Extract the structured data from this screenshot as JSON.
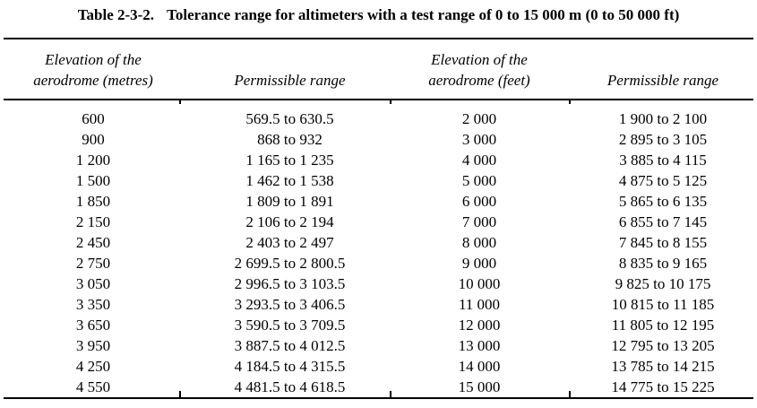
{
  "colors": {
    "text": "#000000",
    "background": "#ffffff",
    "rule": "#000000"
  },
  "title": {
    "label": "Table 2-3-2.",
    "caption": "Tolerance range for altimeters with a test range of 0 to 15 000 m (0 to 50 000 ft)"
  },
  "headers": {
    "elevation_metres_line1": "Elevation of the",
    "elevation_metres_line2": "aerodrome (metres)",
    "permissible_range_metres": "Permissible range",
    "elevation_feet_line1": "Elevation of the",
    "elevation_feet_line2": "aerodrome (feet)",
    "permissible_range_feet": "Permissible range"
  },
  "table": {
    "rows": [
      {
        "elevation_m": "600",
        "range_m": "569.5 to 630.5",
        "elevation_ft": "2 000",
        "range_ft": "1 900 to 2 100"
      },
      {
        "elevation_m": "900",
        "range_m": "868 to 932",
        "elevation_ft": "3 000",
        "range_ft": "2 895 to 3 105"
      },
      {
        "elevation_m": "1 200",
        "range_m": "1 165 to 1 235",
        "elevation_ft": "4 000",
        "range_ft": "3 885 to 4 115"
      },
      {
        "elevation_m": "1 500",
        "range_m": "1 462 to 1 538",
        "elevation_ft": "5 000",
        "range_ft": "4 875 to 5 125"
      },
      {
        "elevation_m": "1 850",
        "range_m": "1 809 to 1 891",
        "elevation_ft": "6 000",
        "range_ft": "5 865 to 6 135"
      },
      {
        "elevation_m": "2 150",
        "range_m": "2 106 to 2 194",
        "elevation_ft": "7 000",
        "range_ft": "6 855 to 7 145"
      },
      {
        "elevation_m": "2 450",
        "range_m": "2 403 to 2 497",
        "elevation_ft": "8 000",
        "range_ft": "7 845 to 8 155"
      },
      {
        "elevation_m": "2 750",
        "range_m": "2 699.5 to 2 800.5",
        "elevation_ft": "9 000",
        "range_ft": "8 835 to 9 165"
      },
      {
        "elevation_m": "3 050",
        "range_m": "2 996.5 to 3 103.5",
        "elevation_ft": "10 000",
        "range_ft": "9 825 to 10 175"
      },
      {
        "elevation_m": "3 350",
        "range_m": "3 293.5 to 3 406.5",
        "elevation_ft": "11 000",
        "range_ft": "10 815 to 11 185"
      },
      {
        "elevation_m": "3 650",
        "range_m": "3 590.5 to 3 709.5",
        "elevation_ft": "12 000",
        "range_ft": "11 805 to 12 195"
      },
      {
        "elevation_m": "3 950",
        "range_m": "3 887.5 to 4 012.5",
        "elevation_ft": "13 000",
        "range_ft": "12 795 to 13 205"
      },
      {
        "elevation_m": "4 250",
        "range_m": "4 184.5 to 4 315.5",
        "elevation_ft": "14 000",
        "range_ft": "13 785 to 14 215"
      },
      {
        "elevation_m": "4 550",
        "range_m": "4 481.5 to 4 618.5",
        "elevation_ft": "15 000",
        "range_ft": "14 775 to 15 225"
      }
    ]
  }
}
